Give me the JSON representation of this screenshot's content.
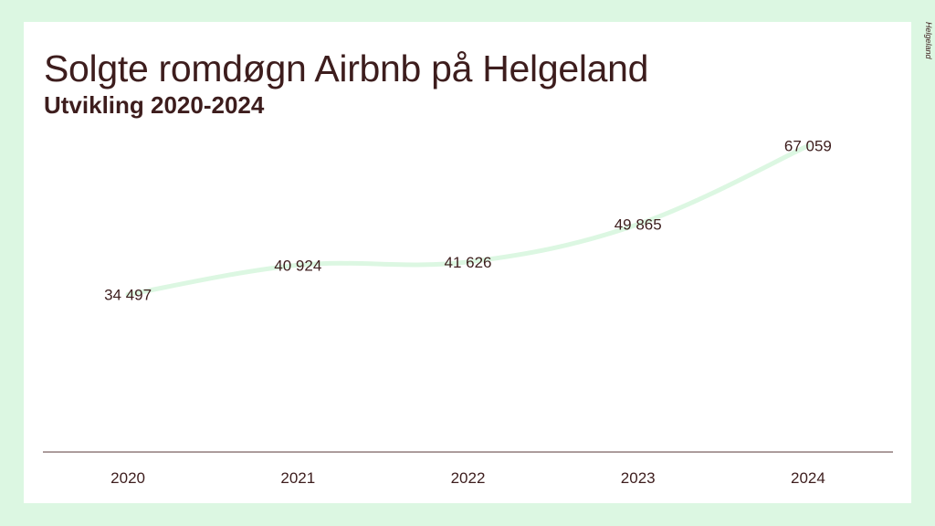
{
  "header": {
    "title": "Solgte romdøgn Airbnb på Helgeland",
    "subtitle": "Utvikling 2020-2024"
  },
  "brand": {
    "label": "Helgeland",
    "icon": "helgeland-logo-icon"
  },
  "colors": {
    "background": "#dcf7e2",
    "line": "#dcf7e2",
    "text": "#3d1d1d",
    "axis": "#5a3a3a"
  },
  "chart_data": {
    "type": "line",
    "title": "Solgte romdøgn Airbnb på Helgeland",
    "subtitle": "Utvikling 2020-2024",
    "categories": [
      "2020",
      "2021",
      "2022",
      "2023",
      "2024"
    ],
    "series": [
      {
        "values": [
          34497,
          40924,
          41626,
          49865,
          67059
        ],
        "labels": [
          "34 497",
          "40 924",
          "41 626",
          "49 865",
          "67 059"
        ]
      }
    ],
    "ylim": [
      0,
      80000
    ],
    "grid": false,
    "legend": "none",
    "xlabel": "",
    "ylabel": ""
  }
}
